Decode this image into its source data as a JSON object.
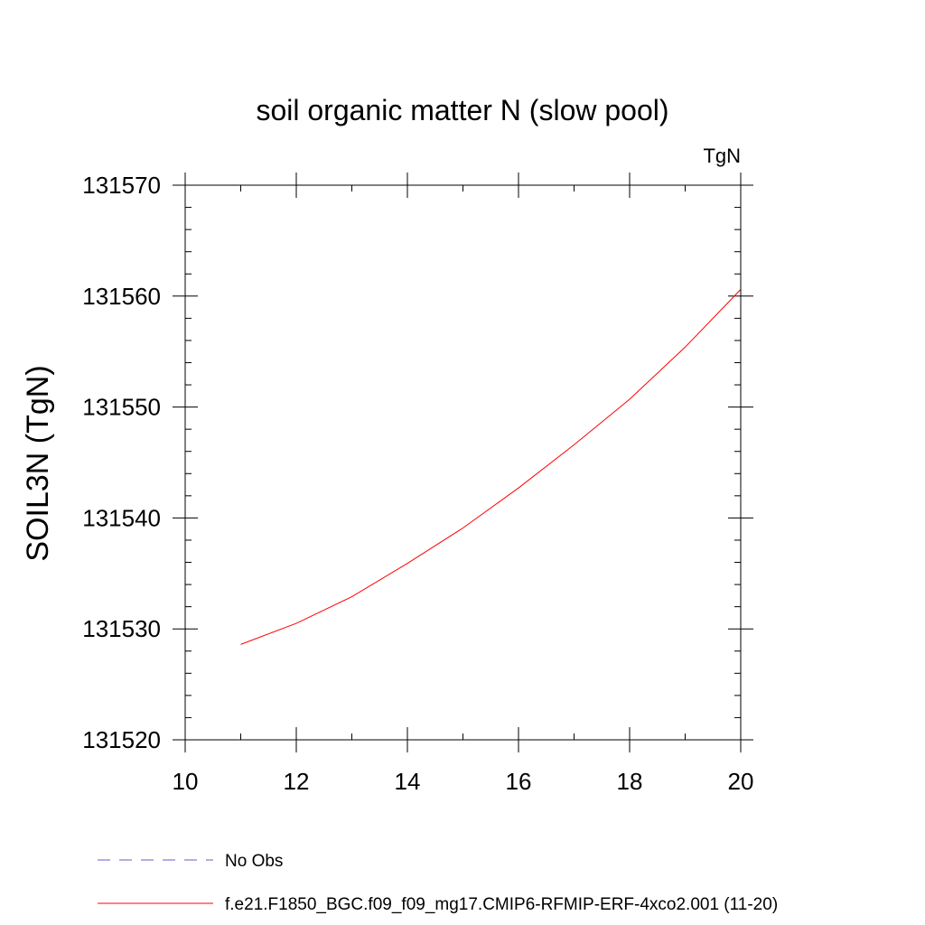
{
  "chart_data": {
    "type": "line",
    "title": "soil organic matter N (slow pool)",
    "units_label": "TgN",
    "xlabel": "",
    "ylabel": "SOIL3N  (TgN)",
    "xlim": [
      10,
      20
    ],
    "ylim": [
      131520,
      131570
    ],
    "x_ticks": [
      10,
      12,
      14,
      16,
      18,
      20
    ],
    "y_ticks": [
      131520,
      131530,
      131540,
      131550,
      131560,
      131570
    ],
    "x_minor_step": 1,
    "y_minor_step": 2,
    "grid": false,
    "legend_position": "bottom",
    "series": [
      {
        "name": "No Obs",
        "color": "#6a5acd",
        "dash": "dashed",
        "x": [],
        "y": []
      },
      {
        "name": "f.e21.F1850_BGC.f09_f09_mg17.CMIP6-RFMIP-ERF-4xco2.001 (11-20)",
        "color": "#ff0000",
        "dash": "solid",
        "x": [
          11,
          12,
          13,
          14,
          15,
          16,
          17,
          18,
          19,
          20
        ],
        "y": [
          131528.6,
          131530.5,
          131532.9,
          131535.9,
          131539.1,
          131542.7,
          131546.6,
          131550.7,
          131555.4,
          131560.6
        ]
      }
    ]
  }
}
